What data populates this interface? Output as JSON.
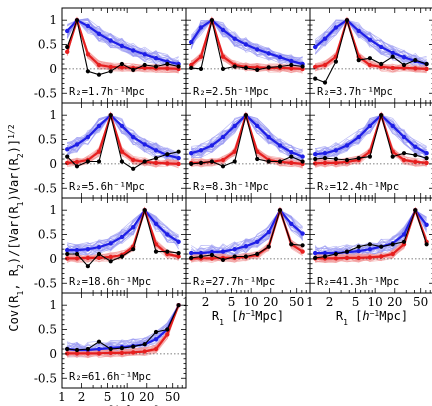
{
  "chart_data": {
    "type": "line",
    "xscale": "log",
    "xlim": [
      1,
      80
    ],
    "ylim": [
      -0.7,
      1.25
    ],
    "xticks": [
      1,
      2,
      5,
      10,
      20,
      50
    ],
    "xtick_labels": [
      "1",
      "2",
      "5",
      "10",
      "20",
      "50"
    ],
    "yticks": [
      -0.5,
      0,
      0.5,
      1
    ],
    "ytick_labels": [
      "-0.5",
      "0",
      "0.5",
      "1"
    ],
    "ylabel": "Cov(R1, R2)/[Var(R1)Var(R2)]^1/2",
    "xlabel": "R1 [h^-1Mpc]",
    "x": [
      1.2,
      1.7,
      2.5,
      3.7,
      5.6,
      8.3,
      12.4,
      18.6,
      27.7,
      41.3,
      61.6
    ],
    "colors": {
      "blue": "#1f1fe6",
      "red": "#e61f1f",
      "black": "#000000",
      "blue_band": "#9b9bf2",
      "red_band": "#f29b9b"
    },
    "panels": [
      {
        "label": "R₂=1.7h⁻¹Mpc",
        "blue": [
          0.78,
          1.0,
          0.88,
          0.72,
          0.58,
          0.47,
          0.38,
          0.3,
          0.22,
          0.15,
          0.1
        ],
        "red": [
          0.35,
          1.0,
          0.3,
          0.08,
          0.04,
          0.03,
          0.02,
          0.02,
          0.01,
          0.01,
          0.0
        ],
        "black": [
          0.45,
          1.0,
          -0.05,
          -0.12,
          -0.05,
          0.1,
          -0.02,
          0.08,
          0.05,
          0.1,
          0.05
        ]
      },
      {
        "label": "R₂=2.5h⁻¹Mpc",
        "blue": [
          0.55,
          0.85,
          1.0,
          0.8,
          0.62,
          0.5,
          0.4,
          0.32,
          0.24,
          0.16,
          0.1
        ],
        "red": [
          0.08,
          0.25,
          1.0,
          0.25,
          0.08,
          0.04,
          0.03,
          0.02,
          0.02,
          0.01,
          0.0
        ],
        "black": [
          0.02,
          0.0,
          1.0,
          0.0,
          0.05,
          0.02,
          -0.02,
          0.03,
          0.05,
          0.08,
          0.05
        ]
      },
      {
        "label": "R₂=3.7h⁻¹Mpc",
        "blue": [
          0.45,
          0.62,
          0.85,
          1.0,
          0.78,
          0.6,
          0.45,
          0.33,
          0.24,
          0.16,
          0.1
        ],
        "red": [
          0.04,
          0.08,
          0.25,
          1.0,
          0.25,
          0.08,
          0.04,
          0.02,
          0.02,
          0.01,
          0.0
        ],
        "black": [
          -0.2,
          -0.28,
          0.15,
          1.0,
          0.18,
          0.22,
          0.1,
          0.25,
          0.08,
          0.18,
          0.1
        ]
      },
      {
        "label": "R₂=5.6h⁻¹Mpc",
        "blue": [
          0.3,
          0.4,
          0.55,
          0.78,
          1.0,
          0.78,
          0.55,
          0.4,
          0.28,
          0.18,
          0.12
        ],
        "red": [
          0.02,
          0.04,
          0.08,
          0.25,
          1.0,
          0.25,
          0.08,
          0.04,
          0.02,
          0.01,
          0.0
        ],
        "black": [
          0.15,
          -0.05,
          0.05,
          0.05,
          1.0,
          0.05,
          -0.1,
          0.05,
          0.12,
          0.2,
          0.25
        ]
      },
      {
        "label": "R₂=8.3h⁻¹Mpc",
        "blue": [
          0.22,
          0.28,
          0.38,
          0.55,
          0.78,
          1.0,
          0.78,
          0.55,
          0.38,
          0.24,
          0.15
        ],
        "red": [
          0.02,
          0.02,
          0.04,
          0.08,
          0.25,
          1.0,
          0.25,
          0.08,
          0.04,
          0.02,
          0.0
        ],
        "black": [
          0.0,
          0.02,
          0.05,
          -0.05,
          0.05,
          1.0,
          0.1,
          0.05,
          0.05,
          0.15,
          0.05
        ]
      },
      {
        "label": "R₂=12.4h⁻¹Mpc",
        "blue": [
          0.2,
          0.22,
          0.28,
          0.38,
          0.55,
          0.78,
          1.0,
          0.78,
          0.55,
          0.35,
          0.22
        ],
        "red": [
          0.01,
          0.02,
          0.02,
          0.04,
          0.08,
          0.25,
          1.0,
          0.25,
          0.08,
          0.04,
          0.02
        ],
        "black": [
          0.1,
          0.12,
          0.1,
          0.08,
          0.12,
          0.15,
          1.0,
          0.15,
          0.22,
          0.18,
          0.12
        ]
      },
      {
        "label": "R₂=18.6h⁻¹Mpc",
        "blue": [
          0.18,
          0.18,
          0.2,
          0.24,
          0.32,
          0.45,
          0.65,
          1.0,
          0.72,
          0.5,
          0.35
        ],
        "red": [
          0.01,
          0.01,
          0.02,
          0.02,
          0.04,
          0.08,
          0.25,
          1.0,
          0.3,
          0.1,
          0.05
        ],
        "black": [
          0.1,
          0.1,
          -0.15,
          0.1,
          -0.05,
          0.05,
          0.2,
          1.0,
          0.15,
          0.15,
          0.12
        ]
      },
      {
        "label": "R₂=27.7h⁻¹Mpc",
        "blue": [
          0.12,
          0.12,
          0.14,
          0.15,
          0.2,
          0.26,
          0.35,
          0.55,
          1.0,
          0.72,
          0.52
        ],
        "red": [
          0.01,
          0.01,
          0.01,
          0.02,
          0.02,
          0.04,
          0.08,
          0.25,
          1.0,
          0.3,
          0.15
        ],
        "black": [
          0.02,
          0.05,
          0.08,
          -0.02,
          0.05,
          0.05,
          0.1,
          0.25,
          1.0,
          0.3,
          0.28
        ]
      },
      {
        "label": "R₂=41.3h⁻¹Mpc",
        "blue": [
          0.12,
          0.12,
          0.12,
          0.14,
          0.16,
          0.2,
          0.25,
          0.32,
          0.5,
          1.0,
          0.7
        ],
        "red": [
          0.01,
          0.01,
          0.01,
          0.02,
          0.02,
          0.03,
          0.05,
          0.1,
          0.3,
          1.0,
          0.35
        ],
        "black": [
          0.02,
          0.05,
          0.1,
          0.15,
          0.25,
          0.3,
          0.25,
          0.3,
          0.35,
          1.0,
          0.3
        ]
      },
      {
        "label": "R₂=61.6h⁻¹Mpc",
        "blue": [
          0.1,
          0.08,
          0.08,
          0.1,
          0.12,
          0.14,
          0.16,
          0.2,
          0.3,
          0.5,
          1.0
        ],
        "red": [
          0.01,
          0.01,
          0.01,
          0.01,
          0.02,
          0.02,
          0.03,
          0.05,
          0.1,
          0.4,
          1.0
        ],
        "black": [
          0.1,
          0.08,
          0.1,
          0.25,
          0.1,
          0.12,
          0.15,
          0.2,
          0.45,
          0.5,
          1.0
        ]
      }
    ]
  }
}
